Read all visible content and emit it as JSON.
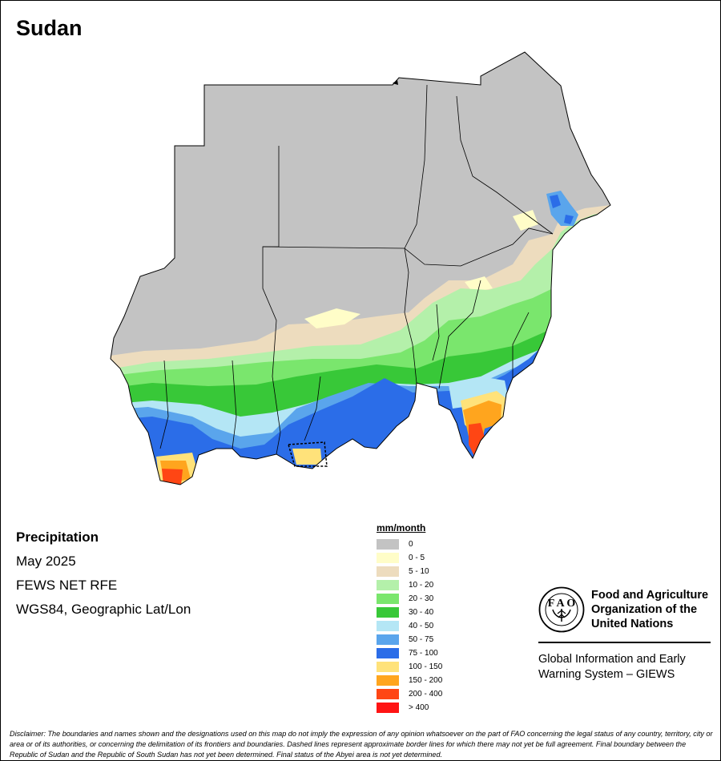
{
  "map": {
    "title": "Sudan",
    "info": {
      "variable": "Precipitation",
      "period": "May 2025",
      "source": "FEWS NET RFE",
      "projection": "WGS84, Geographic Lat/Lon"
    },
    "legend": {
      "title": "mm/month",
      "classes": [
        {
          "label": "0",
          "color": "#c3c3c3"
        },
        {
          "label": "0 - 5",
          "color": "#fffdc8"
        },
        {
          "label": "5 - 10",
          "color": "#eddcbe"
        },
        {
          "label": "10 - 20",
          "color": "#b4f0aa"
        },
        {
          "label": "20 - 30",
          "color": "#7ae66d"
        },
        {
          "label": "30 - 40",
          "color": "#38c838"
        },
        {
          "label": "40 - 50",
          "color": "#b4e6f5"
        },
        {
          "label": "50 - 75",
          "color": "#5aa5ec"
        },
        {
          "label": "75 - 100",
          "color": "#2b6de8"
        },
        {
          "label": "100 - 150",
          "color": "#ffe27a"
        },
        {
          "label": "150 - 200",
          "color": "#ffa51e"
        },
        {
          "label": "200 - 400",
          "color": "#ff4614"
        },
        {
          "label": "> 400",
          "color": "#ff1414"
        }
      ]
    },
    "fao": {
      "logo_icon": "fao-emblem-icon",
      "name_lines": [
        "Food and Agriculture",
        "Organization of the",
        "United Nations"
      ],
      "giews_lines": [
        "Global Information and Early",
        "Warning System – GIEWS"
      ]
    },
    "disclaimer": "Disclaimer: The boundaries and names shown and the designations used on this map do not imply the expression of any opinion whatsoever on the part of FAO concerning the legal status of any country, territory, city or area or of its authorities, or concerning the delimitation of its frontiers and boundaries. Dashed lines represent approximate border lines for which there may not yet be full agreement.  Final boundary between the Republic of Sudan and the Republic of South Sudan has not yet been determined. Final status of the Abyei area is not yet determined."
  }
}
